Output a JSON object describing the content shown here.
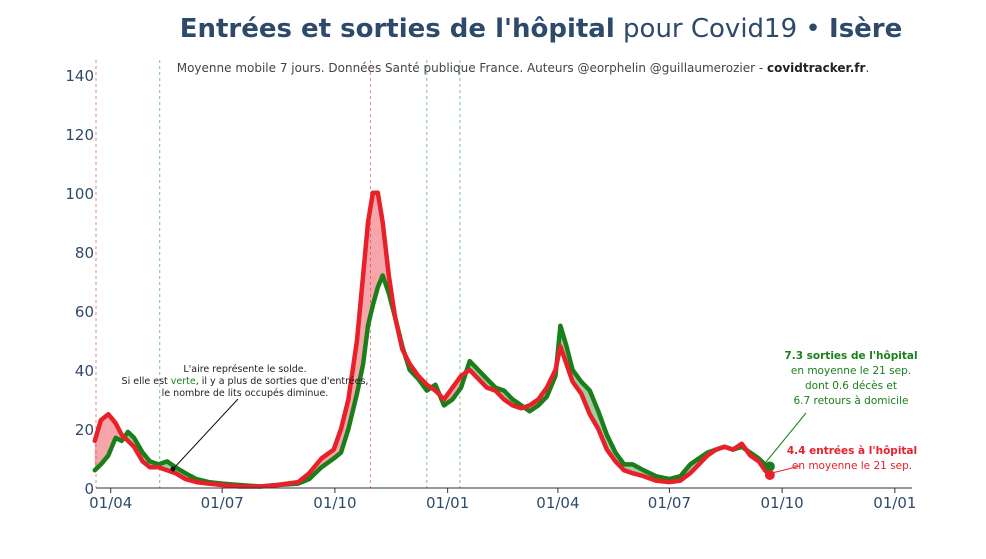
{
  "title": {
    "part1": "Entrées et sorties de l'hôpital",
    "part2": "pour Covid19 •",
    "part3": "Isère"
  },
  "subtitle": {
    "text": "Moyenne mobile 7 jours. Données Santé publique France. Auteurs @eorphelin @guillaumerozier - ",
    "site": "covidtracker.fr",
    "end": "."
  },
  "colors": {
    "entries": "#e8202a",
    "exits": "#1a7f1a",
    "area_red": "#f4a3a3",
    "area_green": "#8fd18f",
    "axis_text": "#2e4a6b"
  },
  "area_note": {
    "line1": "L'aire représente le solde.",
    "line2a": "Si elle est ",
    "line2b": "verte",
    "line2c": ", il y a plus de sorties que d'entrées,",
    "line3": "le nombre de lits occupés diminue."
  },
  "exits_label": {
    "line1": "7.3 sorties de l'hôpital",
    "line2": "en moyenne le 21 sep.",
    "line3": "dont 0.6 décès et",
    "line4": "6.7 retours à domicile"
  },
  "entries_label": {
    "line1": "4.4 entrées à l'hôpital",
    "line2": "en moyenne le 21 sep."
  },
  "chart_data": {
    "type": "line",
    "title": "Entrées et sorties de l'hôpital pour Covid19 • Isère",
    "subtitle": "Moyenne mobile 7 jours. Données Santé publique France. Auteurs @eorphelin @guillaumerozier - covidtracker.fr.",
    "ylim": [
      0,
      145
    ],
    "yticks": [
      0,
      20,
      40,
      60,
      80,
      100,
      120,
      140
    ],
    "xticks": [
      "01/04",
      "01/07",
      "01/10",
      "01/01",
      "01/04",
      "01/07",
      "01/10",
      "01/01"
    ],
    "xtick_dates": [
      "2020-04-01",
      "2020-07-01",
      "2020-10-01",
      "2021-01-01",
      "2021-04-01",
      "2021-07-01",
      "2021-10-01",
      "2022-01-01"
    ],
    "xlim": [
      "2020-03-20",
      "2022-01-15"
    ],
    "vlines_red": [
      "2020-03-17",
      "2020-10-30"
    ],
    "vlines_green": [
      "2020-05-11",
      "2020-12-15",
      "2021-01-11"
    ],
    "series": [
      {
        "name": "Entrées à l'hôpital",
        "color": "#e8202a",
        "points": [
          [
            "2020-03-19",
            16
          ],
          [
            "2020-03-24",
            23
          ],
          [
            "2020-03-30",
            25
          ],
          [
            "2020-04-05",
            22
          ],
          [
            "2020-04-10",
            18
          ],
          [
            "2020-04-15",
            16
          ],
          [
            "2020-04-20",
            14
          ],
          [
            "2020-04-27",
            9
          ],
          [
            "2020-05-03",
            7
          ],
          [
            "2020-05-10",
            7
          ],
          [
            "2020-05-17",
            6
          ],
          [
            "2020-05-24",
            5
          ],
          [
            "2020-06-01",
            3
          ],
          [
            "2020-06-10",
            2
          ],
          [
            "2020-06-20",
            1.5
          ],
          [
            "2020-07-01",
            1
          ],
          [
            "2020-07-15",
            0.5
          ],
          [
            "2020-08-01",
            0.5
          ],
          [
            "2020-08-15",
            1
          ],
          [
            "2020-09-01",
            2
          ],
          [
            "2020-09-10",
            5
          ],
          [
            "2020-09-20",
            10
          ],
          [
            "2020-09-30",
            13
          ],
          [
            "2020-10-06",
            20
          ],
          [
            "2020-10-12",
            30
          ],
          [
            "2020-10-19",
            50
          ],
          [
            "2020-10-24",
            72
          ],
          [
            "2020-10-28",
            90
          ],
          [
            "2020-11-01",
            100
          ],
          [
            "2020-11-05",
            100
          ],
          [
            "2020-11-09",
            90
          ],
          [
            "2020-11-14",
            72
          ],
          [
            "2020-11-19",
            58
          ],
          [
            "2020-11-25",
            47
          ],
          [
            "2020-12-01",
            42
          ],
          [
            "2020-12-08",
            38
          ],
          [
            "2020-12-15",
            35
          ],
          [
            "2020-12-22",
            33
          ],
          [
            "2020-12-29",
            30
          ],
          [
            "2021-01-05",
            34
          ],
          [
            "2021-01-12",
            38
          ],
          [
            "2021-01-19",
            40
          ],
          [
            "2021-01-26",
            37
          ],
          [
            "2021-02-02",
            34
          ],
          [
            "2021-02-09",
            33
          ],
          [
            "2021-02-16",
            30
          ],
          [
            "2021-02-23",
            28
          ],
          [
            "2021-03-02",
            27
          ],
          [
            "2021-03-09",
            28
          ],
          [
            "2021-03-16",
            30
          ],
          [
            "2021-03-23",
            34
          ],
          [
            "2021-03-30",
            40
          ],
          [
            "2021-04-03",
            48
          ],
          [
            "2021-04-08",
            42
          ],
          [
            "2021-04-13",
            36
          ],
          [
            "2021-04-20",
            32
          ],
          [
            "2021-04-27",
            25
          ],
          [
            "2021-05-04",
            20
          ],
          [
            "2021-05-11",
            13
          ],
          [
            "2021-05-18",
            9
          ],
          [
            "2021-05-25",
            6
          ],
          [
            "2021-06-01",
            5
          ],
          [
            "2021-06-10",
            4
          ],
          [
            "2021-06-20",
            2.5
          ],
          [
            "2021-07-01",
            2
          ],
          [
            "2021-07-10",
            2.5
          ],
          [
            "2021-07-18",
            5
          ],
          [
            "2021-07-25",
            8
          ],
          [
            "2021-08-01",
            11
          ],
          [
            "2021-08-08",
            13
          ],
          [
            "2021-08-15",
            14
          ],
          [
            "2021-08-22",
            13
          ],
          [
            "2021-08-29",
            15
          ],
          [
            "2021-09-05",
            11
          ],
          [
            "2021-09-12",
            9
          ],
          [
            "2021-09-17",
            6
          ],
          [
            "2021-09-21",
            4.4
          ]
        ]
      },
      {
        "name": "Sorties de l'hôpital",
        "color": "#1a7f1a",
        "points": [
          [
            "2020-03-19",
            6
          ],
          [
            "2020-03-24",
            8
          ],
          [
            "2020-03-30",
            11
          ],
          [
            "2020-04-05",
            17
          ],
          [
            "2020-04-10",
            16
          ],
          [
            "2020-04-15",
            19
          ],
          [
            "2020-04-20",
            17
          ],
          [
            "2020-04-27",
            12
          ],
          [
            "2020-05-03",
            9
          ],
          [
            "2020-05-10",
            8
          ],
          [
            "2020-05-17",
            9
          ],
          [
            "2020-05-24",
            7
          ],
          [
            "2020-06-01",
            5
          ],
          [
            "2020-06-10",
            3
          ],
          [
            "2020-06-20",
            2
          ],
          [
            "2020-07-01",
            1.5
          ],
          [
            "2020-07-15",
            1
          ],
          [
            "2020-08-01",
            0.5
          ],
          [
            "2020-08-15",
            1
          ],
          [
            "2020-09-01",
            1.5
          ],
          [
            "2020-09-10",
            3
          ],
          [
            "2020-09-20",
            7
          ],
          [
            "2020-09-30",
            10
          ],
          [
            "2020-10-06",
            12
          ],
          [
            "2020-10-12",
            20
          ],
          [
            "2020-10-19",
            32
          ],
          [
            "2020-10-24",
            42
          ],
          [
            "2020-10-28",
            55
          ],
          [
            "2020-11-01",
            62
          ],
          [
            "2020-11-05",
            68
          ],
          [
            "2020-11-09",
            72
          ],
          [
            "2020-11-14",
            66
          ],
          [
            "2020-11-19",
            58
          ],
          [
            "2020-11-25",
            48
          ],
          [
            "2020-12-01",
            40
          ],
          [
            "2020-12-08",
            37
          ],
          [
            "2020-12-15",
            33
          ],
          [
            "2020-12-22",
            35
          ],
          [
            "2020-12-29",
            28
          ],
          [
            "2021-01-05",
            30
          ],
          [
            "2021-01-12",
            34
          ],
          [
            "2021-01-19",
            43
          ],
          [
            "2021-01-26",
            40
          ],
          [
            "2021-02-02",
            37
          ],
          [
            "2021-02-09",
            34
          ],
          [
            "2021-02-16",
            33
          ],
          [
            "2021-02-23",
            30
          ],
          [
            "2021-03-02",
            28
          ],
          [
            "2021-03-09",
            26
          ],
          [
            "2021-03-16",
            28
          ],
          [
            "2021-03-23",
            31
          ],
          [
            "2021-03-30",
            38
          ],
          [
            "2021-04-03",
            55
          ],
          [
            "2021-04-08",
            48
          ],
          [
            "2021-04-13",
            40
          ],
          [
            "2021-04-20",
            36
          ],
          [
            "2021-04-27",
            33
          ],
          [
            "2021-05-04",
            26
          ],
          [
            "2021-05-11",
            18
          ],
          [
            "2021-05-18",
            12
          ],
          [
            "2021-05-25",
            8
          ],
          [
            "2021-06-01",
            8
          ],
          [
            "2021-06-10",
            6
          ],
          [
            "2021-06-20",
            4
          ],
          [
            "2021-07-01",
            3
          ],
          [
            "2021-07-10",
            4
          ],
          [
            "2021-07-18",
            8
          ],
          [
            "2021-07-25",
            10
          ],
          [
            "2021-08-01",
            12
          ],
          [
            "2021-08-08",
            13
          ],
          [
            "2021-08-15",
            14
          ],
          [
            "2021-08-22",
            13
          ],
          [
            "2021-08-29",
            14
          ],
          [
            "2021-09-05",
            12
          ],
          [
            "2021-09-12",
            10
          ],
          [
            "2021-09-17",
            8
          ],
          [
            "2021-09-21",
            7.3
          ]
        ]
      }
    ]
  }
}
